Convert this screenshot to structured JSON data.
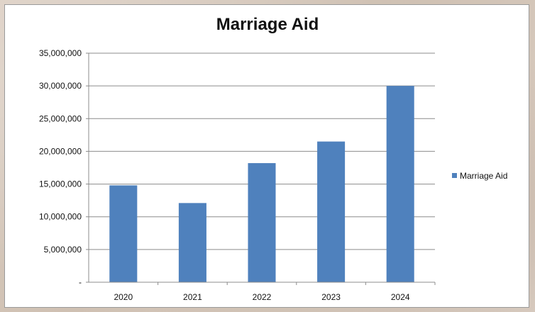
{
  "chart_data": {
    "type": "bar",
    "title": "Marriage Aid",
    "categories": [
      "2020",
      "2021",
      "2022",
      "2023",
      "2024"
    ],
    "series": [
      {
        "name": "Marriage Aid",
        "values": [
          14800000,
          12100000,
          18200000,
          21500000,
          30000000
        ],
        "color": "#4f81bd"
      }
    ],
    "ylim": [
      0,
      35000000
    ],
    "yticks": [
      {
        "value": 0,
        "label": "-"
      },
      {
        "value": 5000000,
        "label": "5,000,000"
      },
      {
        "value": 10000000,
        "label": "10,000,000"
      },
      {
        "value": 15000000,
        "label": "15,000,000"
      },
      {
        "value": 20000000,
        "label": "20,000,000"
      },
      {
        "value": 25000000,
        "label": "25,000,000"
      },
      {
        "value": 30000000,
        "label": "30,000,000"
      },
      {
        "value": 35000000,
        "label": "35,000,000"
      }
    ],
    "grid": true,
    "legend": "right"
  }
}
